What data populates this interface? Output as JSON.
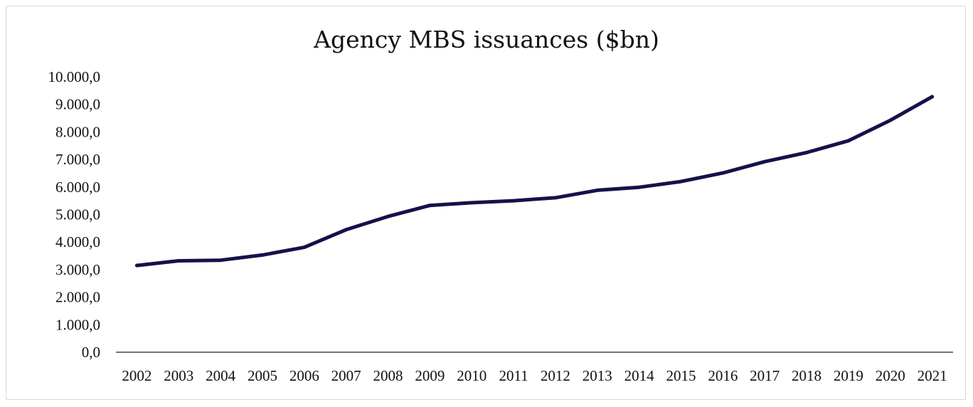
{
  "chart_data": {
    "type": "line",
    "title": "Agency MBS issuances ($bn)",
    "xlabel": "",
    "ylabel": "",
    "ylim": [
      0,
      10000
    ],
    "y_ticks": [
      0,
      1000,
      2000,
      3000,
      4000,
      5000,
      6000,
      7000,
      8000,
      9000,
      10000
    ],
    "y_tick_labels": [
      "0,0",
      "1.000,0",
      "2.000,0",
      "3.000,0",
      "4.000,0",
      "5.000,0",
      "6.000,0",
      "7.000,0",
      "8.000,0",
      "9.000,0",
      "10.000,0"
    ],
    "categories": [
      "2002",
      "2003",
      "2004",
      "2005",
      "2006",
      "2007",
      "2008",
      "2009",
      "2010",
      "2011",
      "2012",
      "2013",
      "2014",
      "2015",
      "2016",
      "2017",
      "2018",
      "2019",
      "2020",
      "2021"
    ],
    "series": [
      {
        "values": [
          3150,
          3320,
          3340,
          3530,
          3810,
          4450,
          4930,
          5330,
          5430,
          5500,
          5610,
          5880,
          5990,
          6200,
          6510,
          6920,
          7250,
          7680,
          8420,
          9280
        ],
        "color": "#14124a"
      }
    ],
    "grid": false,
    "legend": "none"
  }
}
